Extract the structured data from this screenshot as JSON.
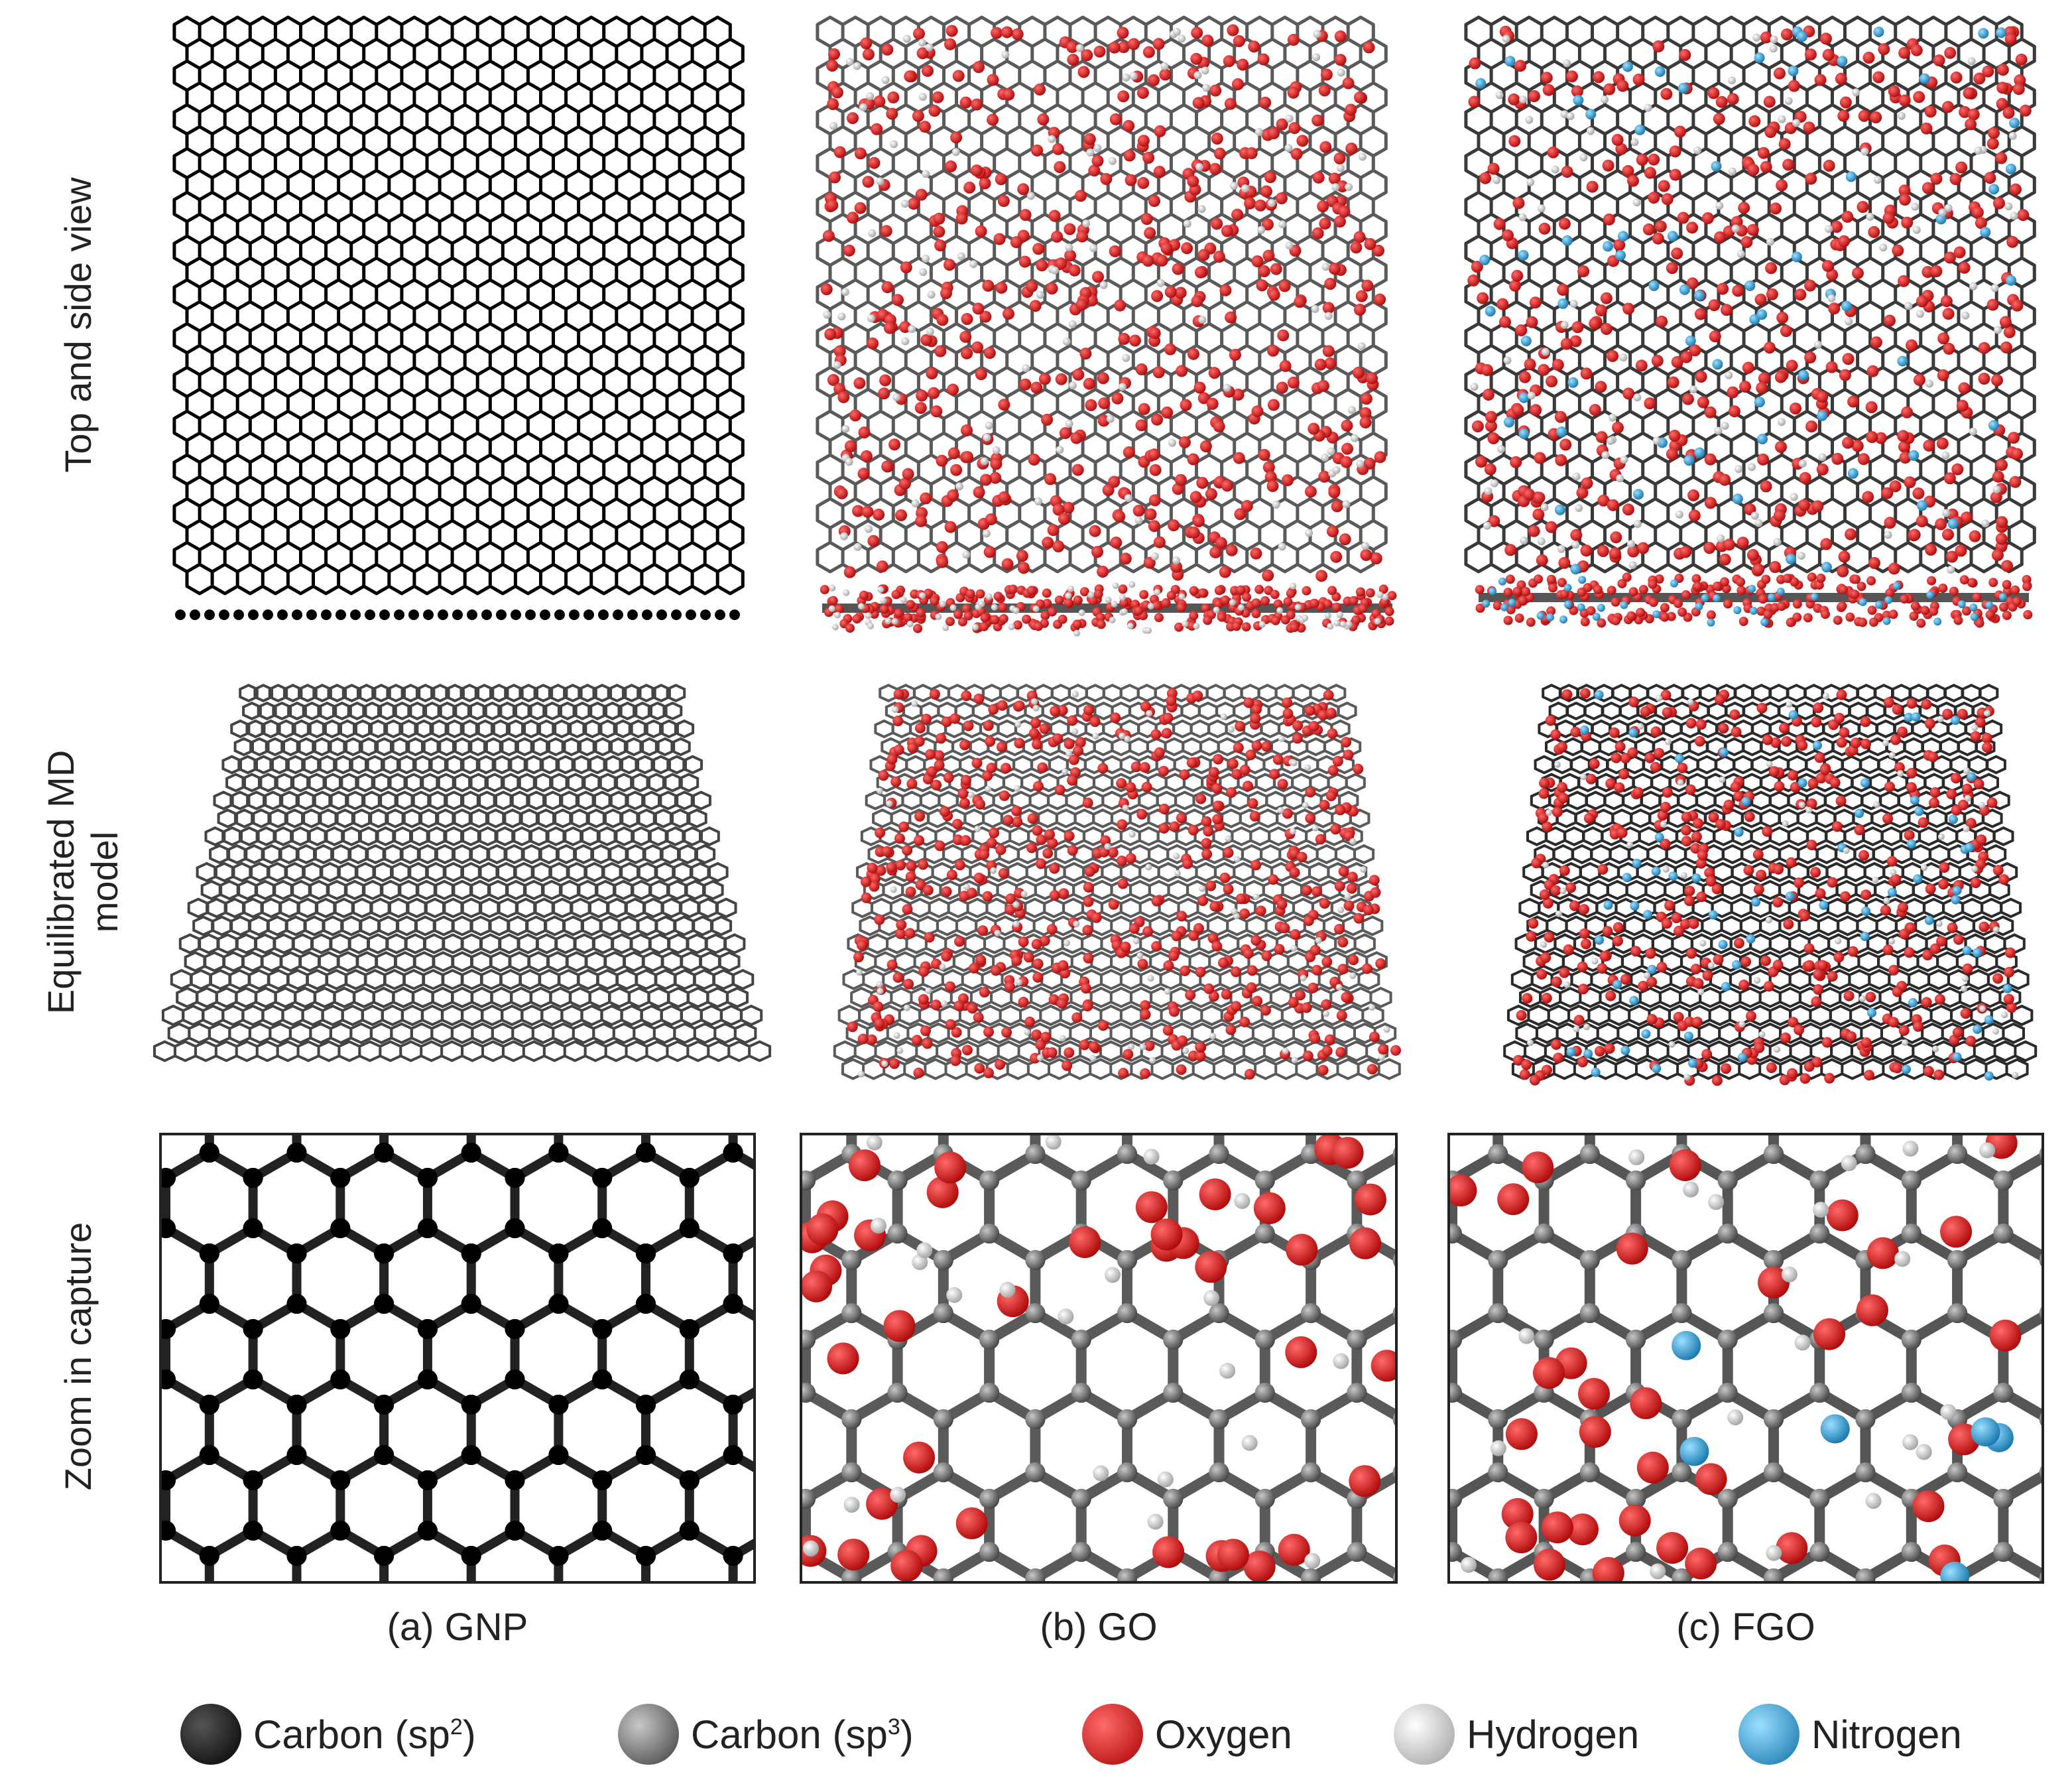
{
  "rows": [
    {
      "label_lines": [
        "Top and side view"
      ]
    },
    {
      "label_lines": [
        "Equilibrated  MD",
        "model"
      ]
    },
    {
      "label_lines": [
        "Zoom  in capture"
      ]
    }
  ],
  "columns": [
    {
      "label": "(a) GNP"
    },
    {
      "label": "(b) GO"
    },
    {
      "label": "(c) FGO"
    }
  ],
  "legend": [
    {
      "text": "Carbon (sp",
      "sup": "2",
      "suffix": ")",
      "color": "#000000",
      "icon": "carbon-sp2-sphere-icon"
    },
    {
      "text": "Carbon (sp",
      "sup": "3",
      "suffix": ")",
      "color": "#5a5a5a",
      "icon": "carbon-sp3-sphere-icon"
    },
    {
      "text": "Oxygen",
      "sup": "",
      "suffix": "",
      "color": "#e60000",
      "icon": "oxygen-sphere-icon"
    },
    {
      "text": "Hydrogen",
      "sup": "",
      "suffix": "",
      "color": "#e6e6e6",
      "icon": "hydrogen-sphere-icon"
    },
    {
      "text": "Nitrogen",
      "sup": "",
      "suffix": "",
      "color": "#1aa7e6",
      "icon": "nitrogen-sphere-icon"
    }
  ],
  "colors": {
    "carbon_sp2": "#000000",
    "carbon_sp3": "#5a5a5a",
    "oxygen": "#e60000",
    "hydrogen": "#e6e6e6",
    "nitrogen": "#1aa7e6"
  }
}
